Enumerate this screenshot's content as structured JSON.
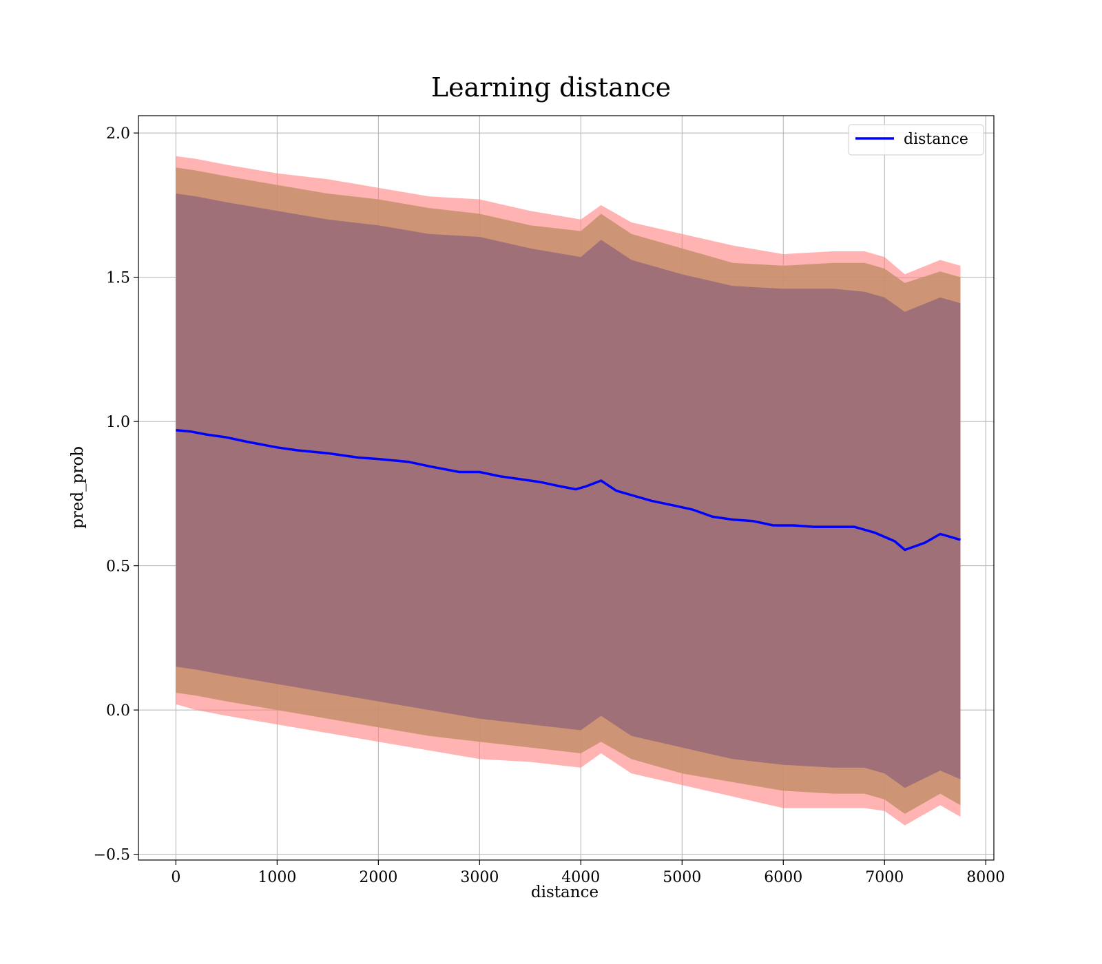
{
  "chart_data": {
    "type": "line",
    "title": "Learning distance",
    "xlabel": "distance",
    "ylabel": "pred_prob",
    "xlim": [
      -370,
      8080
    ],
    "ylim": [
      -0.52,
      2.06
    ],
    "xticks": [
      0,
      1000,
      2000,
      3000,
      4000,
      5000,
      6000,
      7000,
      8000
    ],
    "xtick_labels": [
      "0",
      "1000",
      "2000",
      "3000",
      "4000",
      "5000",
      "6000",
      "7000",
      "8000"
    ],
    "yticks": [
      -0.5,
      0.0,
      0.5,
      1.0,
      1.5,
      2.0
    ],
    "ytick_labels": [
      "−0.5",
      "0.0",
      "0.5",
      "1.0",
      "1.5",
      "2.0"
    ],
    "grid": true,
    "legend": {
      "placement": "top-right",
      "entries": [
        {
          "name": "distance",
          "color": "#0000ff"
        }
      ]
    },
    "colors": {
      "line": "#0000ff",
      "band_outer": "#ff8080",
      "band_middle": "#c8916e",
      "band_inner": "#a07078"
    },
    "series": [
      {
        "name": "distance",
        "x": [
          0,
          150,
          300,
          500,
          700,
          1000,
          1200,
          1500,
          1800,
          2000,
          2300,
          2500,
          2650,
          2800,
          3000,
          3200,
          3400,
          3600,
          3800,
          3950,
          4050,
          4200,
          4350,
          4500,
          4700,
          4900,
          5100,
          5300,
          5500,
          5700,
          5900,
          6100,
          6300,
          6500,
          6700,
          6900,
          7100,
          7200,
          7400,
          7550,
          7750
        ],
        "y": [
          0.97,
          0.965,
          0.955,
          0.945,
          0.93,
          0.91,
          0.9,
          0.89,
          0.875,
          0.87,
          0.86,
          0.845,
          0.835,
          0.825,
          0.825,
          0.81,
          0.8,
          0.79,
          0.775,
          0.765,
          0.775,
          0.795,
          0.76,
          0.745,
          0.725,
          0.71,
          0.695,
          0.67,
          0.66,
          0.655,
          0.64,
          0.64,
          0.635,
          0.635,
          0.635,
          0.615,
          0.585,
          0.555,
          0.58,
          0.61,
          0.59
        ]
      }
    ],
    "bands": [
      {
        "name": "outer",
        "x": [
          0,
          200,
          500,
          1000,
          1500,
          2000,
          2500,
          3000,
          3500,
          4000,
          4200,
          4500,
          5000,
          5500,
          6000,
          6500,
          6800,
          7000,
          7200,
          7550,
          7750
        ],
        "upper": [
          1.92,
          1.91,
          1.89,
          1.86,
          1.84,
          1.81,
          1.78,
          1.77,
          1.73,
          1.7,
          1.75,
          1.69,
          1.65,
          1.61,
          1.58,
          1.59,
          1.59,
          1.57,
          1.51,
          1.56,
          1.54
        ],
        "lower": [
          0.02,
          0.0,
          -0.02,
          -0.05,
          -0.08,
          -0.11,
          -0.14,
          -0.17,
          -0.18,
          -0.2,
          -0.15,
          -0.22,
          -0.26,
          -0.3,
          -0.34,
          -0.34,
          -0.34,
          -0.35,
          -0.4,
          -0.33,
          -0.37
        ]
      },
      {
        "name": "middle",
        "x": [
          0,
          200,
          500,
          1000,
          1500,
          2000,
          2500,
          3000,
          3500,
          4000,
          4200,
          4500,
          5000,
          5500,
          6000,
          6500,
          6800,
          7000,
          7200,
          7550,
          7750
        ],
        "upper": [
          1.88,
          1.87,
          1.85,
          1.82,
          1.79,
          1.77,
          1.74,
          1.72,
          1.68,
          1.66,
          1.72,
          1.65,
          1.6,
          1.55,
          1.54,
          1.55,
          1.55,
          1.53,
          1.48,
          1.52,
          1.5
        ],
        "lower": [
          0.06,
          0.05,
          0.03,
          0.0,
          -0.03,
          -0.06,
          -0.09,
          -0.11,
          -0.13,
          -0.15,
          -0.11,
          -0.17,
          -0.22,
          -0.25,
          -0.28,
          -0.29,
          -0.29,
          -0.31,
          -0.36,
          -0.29,
          -0.33
        ]
      },
      {
        "name": "inner",
        "x": [
          0,
          200,
          500,
          1000,
          1500,
          2000,
          2500,
          3000,
          3500,
          4000,
          4200,
          4500,
          5000,
          5500,
          6000,
          6500,
          6800,
          7000,
          7200,
          7550,
          7750
        ],
        "upper": [
          1.79,
          1.78,
          1.76,
          1.73,
          1.7,
          1.68,
          1.65,
          1.64,
          1.6,
          1.57,
          1.63,
          1.56,
          1.51,
          1.47,
          1.46,
          1.46,
          1.45,
          1.43,
          1.38,
          1.43,
          1.41
        ],
        "lower": [
          0.15,
          0.14,
          0.12,
          0.09,
          0.06,
          0.03,
          0.0,
          -0.03,
          -0.05,
          -0.07,
          -0.02,
          -0.09,
          -0.13,
          -0.17,
          -0.19,
          -0.2,
          -0.2,
          -0.22,
          -0.27,
          -0.21,
          -0.24
        ]
      }
    ]
  }
}
